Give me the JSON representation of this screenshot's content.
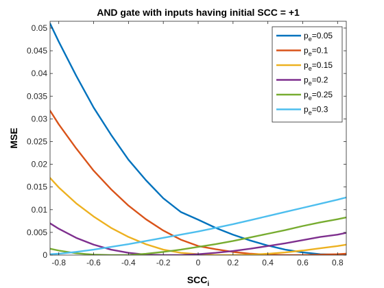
{
  "chart_data": {
    "type": "line",
    "title": "AND gate with inputs having initial SCC = +1",
    "xlabel": {
      "main": "SCC",
      "sub": "i"
    },
    "ylabel": "MSE",
    "xlim": [
      -0.85,
      0.85
    ],
    "ylim": [
      0,
      0.0515
    ],
    "x_ticks": [
      -0.8,
      -0.6,
      -0.4,
      -0.2,
      0,
      0.2,
      0.4,
      0.6,
      0.8
    ],
    "x_tick_labels": [
      "-0.8",
      "-0.6",
      "-0.4",
      "-0.2",
      "0",
      "0.2",
      "0.4",
      "0.6",
      "0.8"
    ],
    "y_ticks": [
      0,
      0.005,
      0.01,
      0.015,
      0.02,
      0.025,
      0.03,
      0.035,
      0.04,
      0.045,
      0.05
    ],
    "y_tick_labels": [
      "0",
      "0.005",
      "0.01",
      "0.015",
      "0.02",
      "0.025",
      "0.03",
      "0.035",
      "0.04",
      "0.045",
      "0.05"
    ],
    "grid": false,
    "legend_position": "top-right",
    "series": [
      {
        "name": {
          "main": "p",
          "sub": "e",
          "suffix": "=0.05"
        },
        "color": "#0072BD",
        "x": [
          -0.85,
          -0.8,
          -0.7,
          -0.6,
          -0.5,
          -0.4,
          -0.3,
          -0.2,
          -0.1,
          0,
          0.1,
          0.2,
          0.3,
          0.4,
          0.5,
          0.6,
          0.7,
          0.8,
          0.85
        ],
        "y": [
          0.051,
          0.047,
          0.0395,
          0.0325,
          0.0265,
          0.021,
          0.0165,
          0.0125,
          0.0095,
          0.0078,
          0.006,
          0.0045,
          0.0032,
          0.0021,
          0.0012,
          0.0006,
          0.0002,
          0.0001,
          0.0001
        ]
      },
      {
        "name": {
          "main": "p",
          "sub": "e",
          "suffix": "=0.1"
        },
        "color": "#D95319",
        "x": [
          -0.85,
          -0.8,
          -0.7,
          -0.6,
          -0.5,
          -0.4,
          -0.3,
          -0.2,
          -0.1,
          0,
          0.1,
          0.2,
          0.3,
          0.4,
          0.5,
          0.6,
          0.7,
          0.8,
          0.85
        ],
        "y": [
          0.0318,
          0.0288,
          0.0235,
          0.0186,
          0.0145,
          0.0109,
          0.0079,
          0.0054,
          0.0034,
          0.002,
          0.0013,
          0.0007,
          0.0003,
          0.0001,
          0.0,
          0.0,
          0.0001,
          0.0002,
          0.0003
        ]
      },
      {
        "name": {
          "main": "p",
          "sub": "e",
          "suffix": "=0.15"
        },
        "color": "#EDB120",
        "x": [
          -0.85,
          -0.8,
          -0.7,
          -0.6,
          -0.5,
          -0.4,
          -0.3,
          -0.2,
          -0.1,
          0,
          0.1,
          0.2,
          0.3,
          0.4,
          0.5,
          0.6,
          0.7,
          0.8,
          0.85
        ],
        "y": [
          0.017,
          0.0149,
          0.0114,
          0.0085,
          0.006,
          0.004,
          0.0024,
          0.0012,
          0.0005,
          0.0002,
          0.0,
          0.0,
          0.0001,
          0.0003,
          0.0006,
          0.001,
          0.0015,
          0.002,
          0.0023
        ]
      },
      {
        "name": {
          "main": "p",
          "sub": "e",
          "suffix": "=0.2"
        },
        "color": "#7E2F8E",
        "x": [
          -0.85,
          -0.8,
          -0.7,
          -0.6,
          -0.5,
          -0.4,
          -0.3,
          -0.2,
          -0.1,
          0,
          0.1,
          0.2,
          0.3,
          0.4,
          0.5,
          0.6,
          0.7,
          0.8,
          0.85
        ],
        "y": [
          0.007,
          0.0058,
          0.0038,
          0.0023,
          0.0012,
          0.0005,
          0.0001,
          0.0,
          0.0,
          0.0002,
          0.0005,
          0.0009,
          0.0014,
          0.002,
          0.0026,
          0.0033,
          0.004,
          0.0045,
          0.0049
        ]
      },
      {
        "name": {
          "main": "p",
          "sub": "e",
          "suffix": "=0.25"
        },
        "color": "#77AC30",
        "x": [
          -0.85,
          -0.8,
          -0.7,
          -0.6,
          -0.5,
          -0.4,
          -0.3,
          -0.2,
          -0.1,
          0,
          0.1,
          0.2,
          0.3,
          0.4,
          0.5,
          0.6,
          0.7,
          0.8,
          0.85
        ],
        "y": [
          0.0014,
          0.001,
          0.0004,
          0.0001,
          0.0,
          0.0,
          0.0003,
          0.0007,
          0.0012,
          0.0018,
          0.0024,
          0.0031,
          0.0039,
          0.0047,
          0.0055,
          0.0064,
          0.0072,
          0.0079,
          0.0083
        ]
      },
      {
        "name": {
          "main": "p",
          "sub": "e",
          "suffix": "=0.3"
        },
        "color": "#4DBEEE",
        "x": [
          -0.85,
          -0.8,
          -0.7,
          -0.6,
          -0.5,
          -0.4,
          -0.3,
          -0.2,
          -0.1,
          0,
          0.1,
          0.2,
          0.3,
          0.4,
          0.5,
          0.6,
          0.7,
          0.8,
          0.85
        ],
        "y": [
          0.0002,
          0.0003,
          0.0007,
          0.0012,
          0.0018,
          0.0024,
          0.0031,
          0.0038,
          0.0045,
          0.0052,
          0.006,
          0.0068,
          0.0077,
          0.0086,
          0.0095,
          0.0104,
          0.0113,
          0.0122,
          0.0127
        ]
      }
    ]
  }
}
